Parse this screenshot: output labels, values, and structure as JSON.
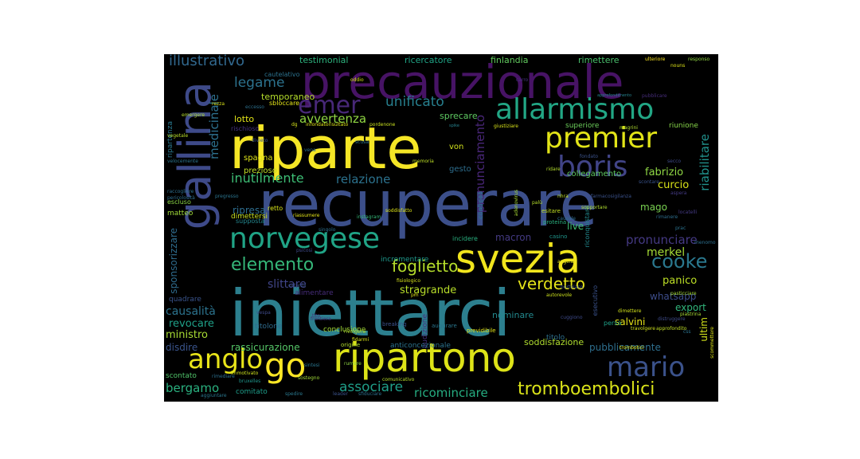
{
  "words": [
    {
      "text": "iniettarci",
      "color": "#2c7f8e"
    },
    {
      "text": "recuperare",
      "color": "#3c4f8a"
    },
    {
      "text": "riparte",
      "color": "#f5e626"
    },
    {
      "text": "precauzionale",
      "color": "#471365"
    },
    {
      "text": "gallina",
      "color": "#3e4a89"
    },
    {
      "text": "ripartono",
      "color": "#dde318"
    },
    {
      "text": "svezia",
      "color": "#f1e51d"
    },
    {
      "text": "norvegese",
      "color": "#20a486"
    },
    {
      "text": "boris",
      "color": "#414487"
    },
    {
      "text": "premier",
      "color": "#e2e418"
    },
    {
      "text": "allarmismo",
      "color": "#22a785"
    },
    {
      "text": "anglo",
      "color": "#e8e419"
    },
    {
      "text": "go",
      "color": "#fde725"
    },
    {
      "text": "mario",
      "color": "#3b528b"
    },
    {
      "text": "emer",
      "color": "#482878"
    },
    {
      "text": "tromboembolici",
      "color": "#dae319"
    },
    {
      "text": "cooke",
      "color": "#2a788e"
    },
    {
      "text": "elemento",
      "color": "#35b779"
    },
    {
      "text": "verdetto",
      "color": "#e5e419"
    },
    {
      "text": "foglietto",
      "color": "#b5de2b"
    },
    {
      "text": "illustrativo",
      "color": "#31688e"
    },
    {
      "text": "legame",
      "color": "#2c728e"
    },
    {
      "text": "unificato",
      "color": "#277f8e"
    },
    {
      "text": "associare",
      "color": "#1f9e89"
    },
    {
      "text": "ricominciare",
      "color": "#26ad81"
    },
    {
      "text": "bergamo",
      "color": "#2ab07f"
    },
    {
      "text": "avvertenza",
      "color": "#90d743"
    },
    {
      "text": "relazione",
      "color": "#2c728e"
    },
    {
      "text": "inutilmente",
      "color": "#3dbc74"
    },
    {
      "text": "pronunciamento",
      "color": "#482677"
    },
    {
      "text": "pronunciare",
      "color": "#443983"
    },
    {
      "text": "medicinale",
      "color": "#2d708e"
    },
    {
      "text": "riabilitare",
      "color": "#21918c"
    },
    {
      "text": "fabrizio",
      "color": "#8fd744"
    },
    {
      "text": "curcio",
      "color": "#d8e219"
    },
    {
      "text": "merkel",
      "color": "#a5db36"
    },
    {
      "text": "panico",
      "color": "#bddf26"
    },
    {
      "text": "stragrande",
      "color": "#b8de29"
    },
    {
      "text": "slittare",
      "color": "#404588"
    },
    {
      "text": "causalità",
      "color": "#2c738e"
    },
    {
      "text": "revocare",
      "color": "#1fa088"
    },
    {
      "text": "ricostruire",
      "color": "#25848e"
    },
    {
      "text": "sponsorizzare",
      "color": "#2f6c8e"
    },
    {
      "text": "disdire",
      "color": "#3a548c"
    },
    {
      "text": "ministro",
      "color": "#a8db34"
    },
    {
      "text": "rassicurazione",
      "color": "#55c667"
    },
    {
      "text": "soddisfazione",
      "color": "#b0dd2f"
    },
    {
      "text": "pubblicamente",
      "color": "#2e6f8e"
    },
    {
      "text": "salvini",
      "color": "#e7e419"
    },
    {
      "text": "ultim",
      "color": "#d2e21b"
    },
    {
      "text": "whatsapp",
      "color": "#3d4d8a"
    },
    {
      "text": "export",
      "color": "#31b57b"
    },
    {
      "text": "ripresa",
      "color": "#2e6d8e"
    },
    {
      "text": "mago",
      "color": "#79d151"
    },
    {
      "text": "live",
      "color": "#3fbc73"
    },
    {
      "text": "macron",
      "color": "#443a83"
    },
    {
      "text": "nominare",
      "color": "#23898e"
    },
    {
      "text": "testimonial",
      "color": "#2db27d"
    },
    {
      "text": "ricercatore",
      "color": "#20a486"
    },
    {
      "text": "finlandia",
      "color": "#62cb5f"
    },
    {
      "text": "rimettere",
      "color": "#4ac16d"
    },
    {
      "text": "temporaneo",
      "color": "#b5de2b"
    },
    {
      "text": "sprecare",
      "color": "#5ec962"
    },
    {
      "text": "lotto",
      "color": "#e2e418"
    },
    {
      "text": "spagna",
      "color": "#dde318"
    },
    {
      "text": "prezioso",
      "color": "#c0df25"
    },
    {
      "text": "von",
      "color": "#d0e11c"
    },
    {
      "text": "gesto",
      "color": "#2e6e8e"
    },
    {
      "text": "collegamento",
      "color": "#5ec962"
    },
    {
      "text": "superiore",
      "color": "#6ccd5a"
    },
    {
      "text": "riunione",
      "color": "#87d549"
    },
    {
      "text": "titolone",
      "color": "#2f6c8e"
    },
    {
      "text": "alimentare",
      "color": "#472d7b"
    },
    {
      "text": "audizione",
      "color": "#46307e"
    },
    {
      "text": "incrementare",
      "color": "#1f988b"
    },
    {
      "text": "conclusione",
      "color": "#a2da37"
    },
    {
      "text": "anticoncezionale",
      "color": "#2c738e"
    },
    {
      "text": "titolo",
      "color": "#2d708e"
    },
    {
      "text": "comitato",
      "color": "#1e9c89"
    },
    {
      "text": "scontato",
      "color": "#50c46a"
    },
    {
      "text": "dimettersi",
      "color": "#c8e020"
    },
    {
      "text": "quadrare",
      "color": "#3a548c"
    },
    {
      "text": "matteo",
      "color": "#a0da39"
    },
    {
      "text": "escluso",
      "color": "#8bd646"
    },
    {
      "text": "ripartenza",
      "color": "#2a788e"
    },
    {
      "text": "cautelativo",
      "color": "#2c728e"
    },
    {
      "text": "sbloccare",
      "color": "#e5e419"
    },
    {
      "text": "rischioso",
      "color": "#46337f"
    },
    {
      "text": "supposta",
      "color": "#24878e"
    },
    {
      "text": "retto",
      "color": "#d5e21a"
    },
    {
      "text": "incidere",
      "color": "#29af7f"
    },
    {
      "text": "riconquistare",
      "color": "#23898e"
    },
    {
      "text": "controllo",
      "color": "#2c738e"
    },
    {
      "text": "esecutivo",
      "color": "#3b528b"
    },
    {
      "text": "perso",
      "color": "#1fa188"
    },
    {
      "text": "breaking",
      "color": "#3b528b"
    },
    {
      "text": "augurare",
      "color": "#2a768e"
    },
    {
      "text": "origine",
      "color": "#b2dd2d"
    },
    {
      "text": "previdibile",
      "color": "#e3e418"
    },
    {
      "text": "casino",
      "color": "#1f958b"
    },
    {
      "text": "proteina",
      "color": "#2ab07f"
    },
    {
      "text": "esitare",
      "color": "#c2df23"
    },
    {
      "text": "singolo",
      "color": "#2d708e"
    },
    {
      "text": "instagram",
      "color": "#35b779"
    },
    {
      "text": "vegetale",
      "color": "#bade28"
    },
    {
      "text": "emergere",
      "color": "#b5de2b"
    },
    {
      "text": "velocemente",
      "color": "#2b748e"
    },
    {
      "text": "raccogliere",
      "color": "#2e6e8e"
    },
    {
      "text": "responso",
      "color": "#90d743"
    },
    {
      "text": "ulteriore",
      "color": "#fde725"
    },
    {
      "text": "carro",
      "color": "#46337f"
    },
    {
      "text": "oddio",
      "color": "#d8e219"
    },
    {
      "text": "approfondimento",
      "color": "#25838e"
    },
    {
      "text": "giustiziare",
      "color": "#d8e219"
    },
    {
      "text": "magrini",
      "color": "#b0dd2f"
    },
    {
      "text": "spike",
      "color": "#26828e"
    },
    {
      "text": "eccesso",
      "color": "#2d708e"
    },
    {
      "text": "rezza",
      "color": "#dae319"
    },
    {
      "text": "sostegno",
      "color": "#a0da39"
    },
    {
      "text": "sintesi",
      "color": "#2a768e"
    },
    {
      "text": "rumore",
      "color": "#90d743"
    },
    {
      "text": "comunicativo",
      "color": "#b8de29"
    },
    {
      "text": "spedire",
      "color": "#2a788e"
    },
    {
      "text": "leader",
      "color": "#3b528b"
    },
    {
      "text": "sfiduciare",
      "color": "#2d708e"
    },
    {
      "text": "bruxelles",
      "color": "#1f958b"
    },
    {
      "text": "immotivato",
      "color": "#cde11d"
    },
    {
      "text": "aggiuntare",
      "color": "#2a778e"
    },
    {
      "text": "travolgere",
      "color": "#d0e11c"
    },
    {
      "text": "approfondito",
      "color": "#c0df25"
    },
    {
      "text": "trombotici",
      "color": "#e2e418"
    },
    {
      "text": "dimettere",
      "color": "#d2e21b"
    },
    {
      "text": "angela",
      "color": "#e7e419"
    },
    {
      "text": "fisiologico",
      "color": "#d5e21a"
    },
    {
      "text": "scommettere",
      "color": "#dde318"
    },
    {
      "text": "piastrina",
      "color": "#a8db34"
    },
    {
      "text": "locatelli",
      "color": "#443a83"
    },
    {
      "text": "soddisfatto",
      "color": "#dde318"
    },
    {
      "text": "memoria",
      "color": "#bddf26"
    },
    {
      "text": "vena",
      "color": "#2d708e"
    },
    {
      "text": "scusa",
      "color": "#2c738e"
    },
    {
      "text": "divieto",
      "color": "#3a548c"
    },
    {
      "text": "infondatorisultato",
      "color": "#dde318"
    },
    {
      "text": "pordenone",
      "color": "#c8e020"
    },
    {
      "text": "dg",
      "color": "#d5e21a"
    },
    {
      "text": "pubblicare",
      "color": "#472d7b"
    },
    {
      "text": "fondato",
      "color": "#3b528b"
    },
    {
      "text": "rimediare",
      "color": "#2d708e"
    },
    {
      "text": "pericolosità",
      "color": "#2e6e8e"
    },
    {
      "text": "pregresso",
      "color": "#2b748e"
    },
    {
      "text": "riassumere",
      "color": "#e3e418"
    },
    {
      "text": "psicosi",
      "color": "#3e4a89"
    },
    {
      "text": "catania",
      "color": "#3b528b"
    },
    {
      "text": "vespa",
      "color": "#3e4a89"
    },
    {
      "text": "frontiera",
      "color": "#46337f"
    },
    {
      "text": "rivolgersi",
      "color": "#b0dd2f"
    },
    {
      "text": "pm",
      "color": "#e2e418"
    },
    {
      "text": "fidarmi",
      "color": "#d8e219"
    },
    {
      "text": "palù",
      "color": "#b5de2b"
    },
    {
      "text": "nhra",
      "color": "#c0df25"
    },
    {
      "text": "causale",
      "color": "#2e6e8e"
    },
    {
      "text": "farmacosigilanza",
      "color": "#3b528b"
    },
    {
      "text": "sopportare",
      "color": "#b0dd2f"
    },
    {
      "text": "adenovirus",
      "color": "#a8db34"
    },
    {
      "text": "ridare",
      "color": "#b2dd2d"
    },
    {
      "text": "autorevole",
      "color": "#cde11d"
    },
    {
      "text": "cuggiono",
      "color": "#3e4a89"
    },
    {
      "text": "pasticciare",
      "color": "#a5db36"
    },
    {
      "text": "bortolaso",
      "color": "#3b528b"
    },
    {
      "text": "secco",
      "color": "#3e4a89"
    },
    {
      "text": "menomo",
      "color": "#2d708e"
    },
    {
      "text": "nouns",
      "color": "#dde318"
    },
    {
      "text": "distruggere",
      "color": "#3e4a89"
    },
    {
      "text": "css",
      "color": "#2c728e"
    },
    {
      "text": "prac",
      "color": "#2c738e"
    },
    {
      "text": "scontare",
      "color": "#3a548c"
    },
    {
      "text": "rimanere",
      "color": "#2e6e8e"
    },
    {
      "text": "aspera",
      "color": "#443a83"
    },
    {
      "text": "tito",
      "color": "#472d7b"
    }
  ]
}
